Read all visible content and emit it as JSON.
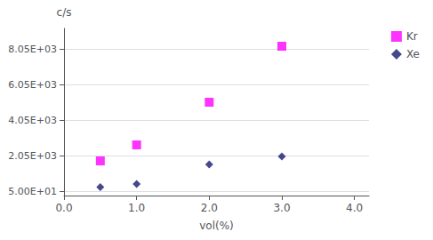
{
  "chart_data": {
    "type": "scatter",
    "xlabel": "vol(%)",
    "ylabel": "c/s",
    "series": [
      {
        "name": "Kr",
        "color": "#FF00FF",
        "marker": "square",
        "x": [
          0.5,
          1.0,
          2.0,
          3.0
        ],
        "values": [
          1750,
          2650,
          5050,
          8200
        ]
      },
      {
        "name": "Xe",
        "color": "#191970",
        "marker": "diamond",
        "x": [
          0.5,
          1.0,
          2.0,
          3.0
        ],
        "values": [
          280,
          450,
          1550,
          2000
        ]
      }
    ],
    "xlim": [
      0.0,
      4.2
    ],
    "xticks": [
      {
        "value": 0.0,
        "label": "0.0"
      },
      {
        "value": 1.0,
        "label": "1.0"
      },
      {
        "value": 2.0,
        "label": "2.0"
      },
      {
        "value": 3.0,
        "label": "3.0"
      },
      {
        "value": 4.0,
        "label": "4.0"
      }
    ],
    "ylim": [
      -200,
      9200
    ],
    "yticks": [
      {
        "value": 50,
        "label": "5.00E+01"
      },
      {
        "value": 2050,
        "label": "2.05E+03"
      },
      {
        "value": 4050,
        "label": "4.05E+03"
      },
      {
        "value": 6050,
        "label": "6.05E+03"
      },
      {
        "value": 8050,
        "label": "8.05E+03"
      }
    ],
    "grid": "y",
    "legend": "right"
  }
}
